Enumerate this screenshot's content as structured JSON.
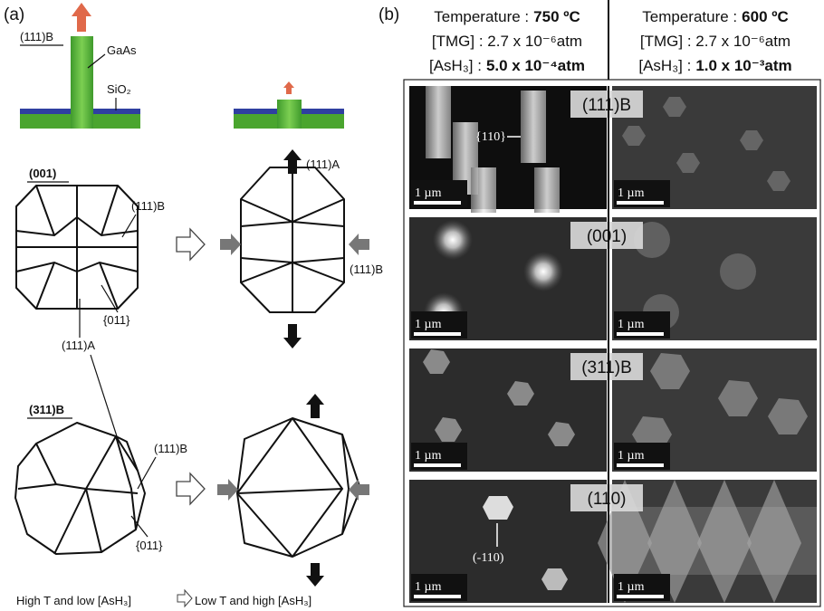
{
  "panel_a": {
    "label": "(a)",
    "schematic": {
      "growth_direction": "(111)B",
      "pillar": "GaAs",
      "mask": "SiO₂"
    },
    "octagon_001": {
      "title": "(001)",
      "facet_b": "(111)B",
      "facet_011": "{011}",
      "facet_a": "(111)A",
      "top_arrow": "(111)A",
      "side_arrow": "(111)B"
    },
    "shape_311b": {
      "title": "(311)B",
      "facet_b": "(111)B",
      "facet_011": "{011}"
    },
    "legend": {
      "left": "High T and low [AsH₃]",
      "right": "Low T and high [AsH₃]"
    }
  },
  "panel_b": {
    "label": "(b)",
    "conditions": [
      {
        "temperature_label": "Temperature :",
        "temperature": "750 ºC",
        "tmg": "[TMG] : 2.7 x 10⁻⁶atm",
        "ash3_label": "[AsH₃] :",
        "ash3": "5.0 x 10⁻⁴atm"
      },
      {
        "temperature_label": "Temperature :",
        "temperature": "600 ºC",
        "tmg": "[TMG] : 2.7 x 10⁻⁶atm",
        "ash3_label": "[AsH₃] :",
        "ash3": "1.0 x 10⁻³atm"
      }
    ],
    "rows": [
      {
        "substrate": "(111)B",
        "scale_bars": [
          "1 µm",
          "1 µm"
        ]
      },
      {
        "substrate": "(001)",
        "scale_bars": [
          "1 µm",
          "1 µm"
        ]
      },
      {
        "substrate": "(311)B",
        "scale_bars": [
          "1 µm",
          "1 µm"
        ]
      },
      {
        "substrate": "(110)",
        "scale_bars": [
          "1 µm",
          "1 µm"
        ]
      }
    ],
    "annotations": {
      "facet_110": "{110}",
      "facet_m110": "(-110)"
    }
  }
}
